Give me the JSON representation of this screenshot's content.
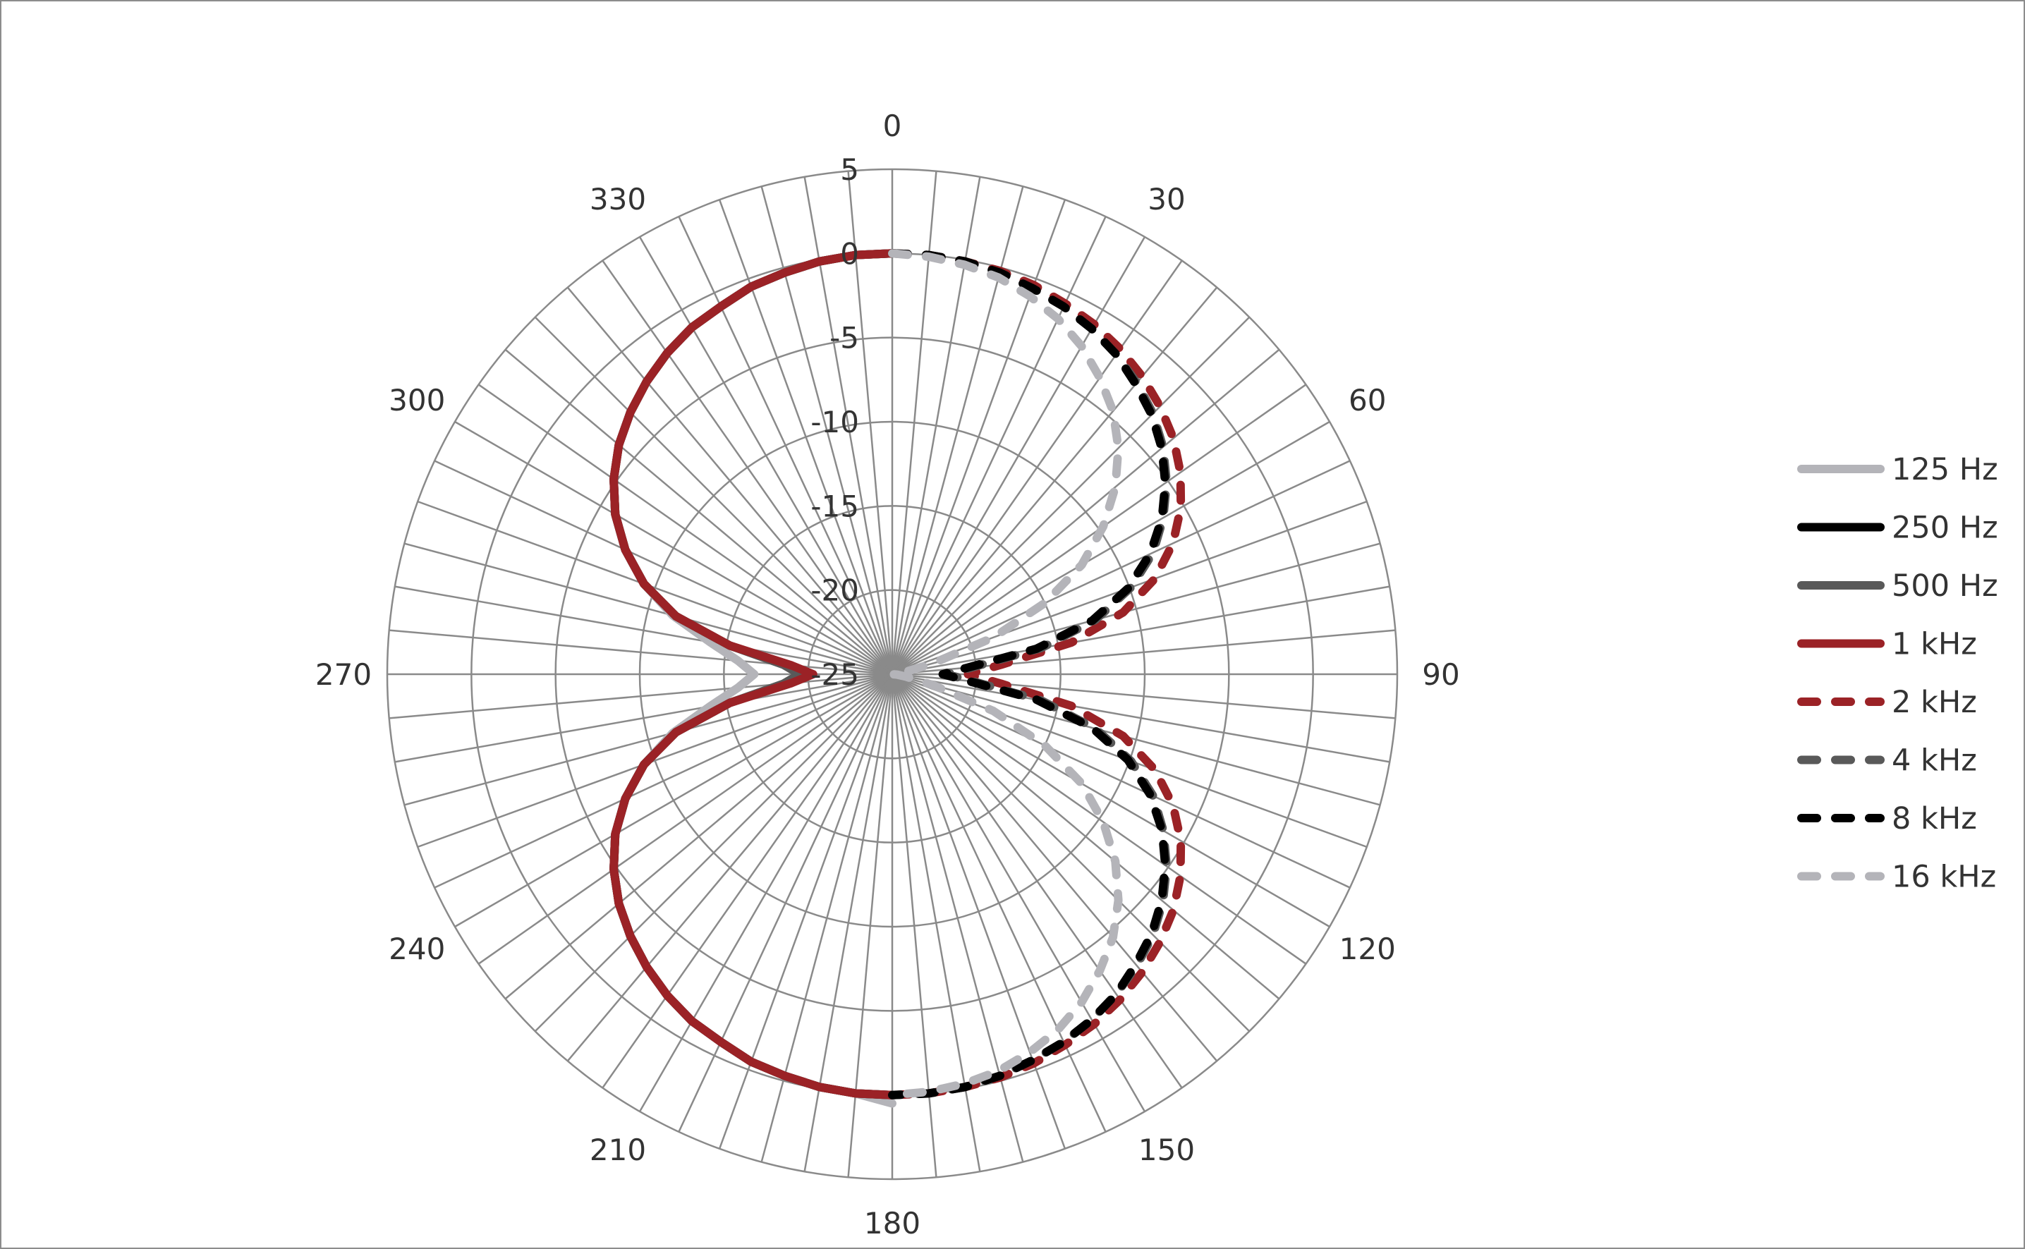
{
  "chart_data": {
    "type": "polar-line",
    "title": "",
    "angle_unit": "degrees",
    "angle_direction": "clockwise",
    "angle_zero": "top",
    "angle_tick_labels": [
      "0",
      "30",
      "60",
      "90",
      "120",
      "150",
      "180",
      "210",
      "240",
      "270",
      "300",
      "330"
    ],
    "angle_ticks": [
      0,
      30,
      60,
      90,
      120,
      150,
      180,
      210,
      240,
      270,
      300,
      330
    ],
    "angle_grid_step": 5,
    "radial_range": [
      -25,
      5
    ],
    "radial_ticks": [
      5,
      0,
      -5,
      -10,
      -15,
      -20,
      -25
    ],
    "radial_tick_labels": [
      "5",
      "0",
      "-5",
      "-10",
      "-15",
      "-20",
      "-25"
    ],
    "grid": true,
    "legend_position": "right",
    "series": [
      {
        "name": "125 Hz",
        "color": "#b4b4b9",
        "dashed": false,
        "angles": [
          180,
          185,
          190,
          195,
          200,
          205,
          210,
          215,
          220,
          225,
          230,
          235,
          240,
          245,
          250,
          255,
          260,
          265,
          270,
          275,
          280,
          285,
          290,
          295,
          300,
          305,
          310,
          315,
          320,
          325,
          330,
          335,
          340,
          345,
          350,
          355,
          360
        ],
        "values": [
          0.5,
          0,
          -0.1,
          -0.3,
          -0.5,
          -0.9,
          -1.2,
          -1.7,
          -2.3,
          -3.0,
          -3.8,
          -4.8,
          -6.0,
          -7.5,
          -9.3,
          -11.5,
          -14.0,
          -15.8,
          -16.8,
          -15.8,
          -14.0,
          -11.5,
          -9.3,
          -7.5,
          -6.0,
          -4.8,
          -3.8,
          -3.0,
          -2.3,
          -1.7,
          -1.2,
          -0.9,
          -0.5,
          -0.3,
          -0.1,
          0,
          0
        ]
      },
      {
        "name": "250 Hz",
        "color": "#000000",
        "dashed": false,
        "angles": [
          180,
          185,
          190,
          195,
          200,
          205,
          210,
          215,
          220,
          225,
          230,
          235,
          240,
          245,
          250,
          255,
          260,
          265,
          270,
          275,
          280,
          285,
          290,
          295,
          300,
          305,
          310,
          315,
          320,
          325,
          330,
          335,
          340,
          345,
          350,
          355,
          360
        ],
        "values": [
          0,
          0,
          -0.1,
          -0.3,
          -0.5,
          -0.9,
          -1.2,
          -1.7,
          -2.3,
          -3.0,
          -3.8,
          -4.8,
          -6.0,
          -7.5,
          -9.3,
          -11.7,
          -15.2,
          -18.8,
          -20.0,
          -18.8,
          -15.2,
          -11.7,
          -9.3,
          -7.5,
          -6.0,
          -4.8,
          -3.8,
          -3.0,
          -2.3,
          -1.7,
          -1.2,
          -0.9,
          -0.5,
          -0.3,
          -0.1,
          0,
          0
        ]
      },
      {
        "name": "500 Hz",
        "color": "#595959",
        "dashed": false,
        "angles": [
          180,
          185,
          190,
          195,
          200,
          205,
          210,
          215,
          220,
          225,
          230,
          235,
          240,
          245,
          250,
          255,
          260,
          265,
          270,
          275,
          280,
          285,
          290,
          295,
          300,
          305,
          310,
          315,
          320,
          325,
          330,
          335,
          340,
          345,
          350,
          355,
          360
        ],
        "values": [
          0,
          0,
          -0.1,
          -0.3,
          -0.5,
          -0.9,
          -1.2,
          -1.7,
          -2.3,
          -3.0,
          -3.8,
          -4.8,
          -6.0,
          -7.5,
          -9.3,
          -11.7,
          -15.2,
          -18.5,
          -19.5,
          -18.5,
          -15.2,
          -11.7,
          -9.3,
          -7.5,
          -6.0,
          -4.8,
          -3.8,
          -3.0,
          -2.3,
          -1.7,
          -1.2,
          -0.9,
          -0.5,
          -0.3,
          -0.1,
          0,
          0
        ]
      },
      {
        "name": "1 kHz",
        "color": "#9b2226",
        "dashed": false,
        "angles": [
          180,
          185,
          190,
          195,
          200,
          205,
          210,
          215,
          220,
          225,
          230,
          235,
          240,
          245,
          250,
          255,
          260,
          265,
          270,
          275,
          280,
          285,
          290,
          295,
          300,
          305,
          310,
          315,
          320,
          325,
          330,
          335,
          340,
          345,
          350,
          355,
          360
        ],
        "values": [
          0,
          0,
          -0.1,
          -0.3,
          -0.5,
          -0.9,
          -1.2,
          -1.7,
          -2.3,
          -3.0,
          -3.8,
          -4.8,
          -6.0,
          -7.5,
          -9.3,
          -11.7,
          -15.2,
          -19.0,
          -20.3,
          -19.0,
          -15.2,
          -11.7,
          -9.3,
          -7.5,
          -6.0,
          -4.8,
          -3.8,
          -3.0,
          -2.3,
          -1.7,
          -1.2,
          -0.9,
          -0.5,
          -0.3,
          -0.1,
          0,
          0
        ]
      },
      {
        "name": "2 kHz",
        "color": "#9b2226",
        "dashed": true,
        "angles": [
          0,
          5,
          10,
          15,
          20,
          25,
          30,
          35,
          40,
          45,
          50,
          55,
          60,
          65,
          70,
          75,
          80,
          85,
          90,
          95,
          100,
          105,
          110,
          115,
          120,
          125,
          130,
          135,
          140,
          145,
          150,
          155,
          160,
          165,
          170,
          175,
          180
        ],
        "values": [
          0,
          0,
          -0.1,
          -0.2,
          -0.4,
          -0.7,
          -1.0,
          -1.4,
          -1.9,
          -2.5,
          -3.2,
          -4.1,
          -5.2,
          -6.6,
          -8.4,
          -10.8,
          -14.2,
          -18.5,
          -20.5,
          -18.5,
          -14.2,
          -10.8,
          -8.4,
          -6.6,
          -5.2,
          -4.1,
          -3.2,
          -2.5,
          -1.9,
          -1.4,
          -1.0,
          -0.7,
          -0.4,
          -0.2,
          -0.1,
          0,
          0
        ]
      },
      {
        "name": "4 kHz",
        "color": "#595959",
        "dashed": true,
        "angles": [
          0,
          5,
          10,
          15,
          20,
          25,
          30,
          35,
          40,
          45,
          50,
          55,
          60,
          65,
          70,
          75,
          80,
          85,
          90,
          95,
          100,
          105,
          110,
          115,
          120,
          125,
          130,
          135,
          140,
          145,
          150,
          155,
          160,
          165,
          170,
          175,
          180
        ],
        "values": [
          0,
          0,
          -0.1,
          -0.3,
          -0.6,
          -0.9,
          -1.3,
          -1.8,
          -2.4,
          -3.1,
          -4.0,
          -5.1,
          -6.4,
          -7.9,
          -9.9,
          -12.5,
          -16.0,
          -20.2,
          -21.8,
          -20.2,
          -16.0,
          -12.5,
          -9.9,
          -7.9,
          -6.4,
          -5.1,
          -4.0,
          -3.1,
          -2.4,
          -1.8,
          -1.3,
          -0.9,
          -0.6,
          -0.3,
          -0.1,
          0,
          0
        ]
      },
      {
        "name": "8 kHz",
        "color": "#000000",
        "dashed": true,
        "angles": [
          0,
          5,
          10,
          15,
          20,
          25,
          30,
          35,
          40,
          45,
          50,
          55,
          60,
          65,
          70,
          75,
          80,
          85,
          90,
          95,
          100,
          105,
          110,
          115,
          120,
          125,
          130,
          135,
          140,
          145,
          150,
          155,
          160,
          165,
          170,
          175,
          180
        ],
        "values": [
          0,
          0,
          -0.1,
          -0.3,
          -0.6,
          -0.9,
          -1.3,
          -1.8,
          -2.5,
          -3.2,
          -4.1,
          -5.2,
          -6.5,
          -8.1,
          -10.1,
          -12.7,
          -16.3,
          -20.5,
          -22.0,
          -20.5,
          -16.3,
          -12.7,
          -10.1,
          -8.1,
          -6.5,
          -5.2,
          -4.1,
          -3.2,
          -2.5,
          -1.8,
          -1.3,
          -0.9,
          -0.6,
          -0.3,
          -0.1,
          0,
          0
        ]
      },
      {
        "name": "16 kHz",
        "color": "#b4b4b9",
        "dashed": true,
        "angles": [
          0,
          5,
          10,
          15,
          20,
          25,
          30,
          35,
          40,
          45,
          50,
          55,
          60,
          65,
          70,
          75,
          80,
          85,
          90,
          95,
          100,
          105,
          110,
          115,
          120,
          125,
          130,
          135,
          140,
          145,
          150,
          155,
          160,
          165,
          170,
          175,
          180
        ],
        "values": [
          0,
          -0.1,
          -0.3,
          -0.6,
          -1.1,
          -1.7,
          -2.5,
          -3.5,
          -4.6,
          -6.0,
          -7.7,
          -9.7,
          -12.0,
          -15.0,
          -18.6,
          -22.5,
          -24.2,
          -24.7,
          -25,
          -24.7,
          -24.2,
          -22.5,
          -18.6,
          -15.0,
          -12.0,
          -9.7,
          -7.7,
          -6.0,
          -4.6,
          -3.5,
          -2.5,
          -1.7,
          -1.1,
          -0.6,
          -0.3,
          -0.1,
          0
        ]
      }
    ]
  }
}
